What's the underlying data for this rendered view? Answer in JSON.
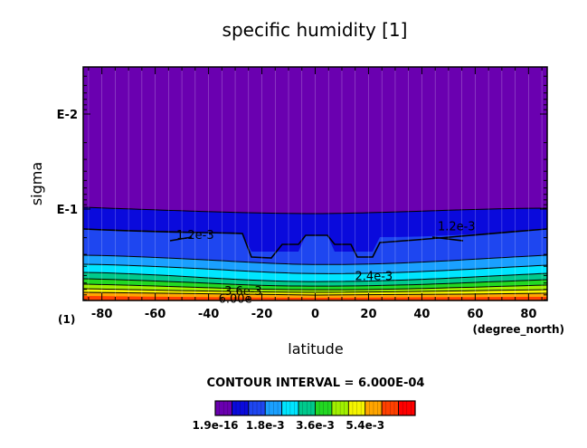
{
  "chart_data": {
    "type": "heatmap",
    "title": "specific humidity [1]",
    "xlabel": "latitude",
    "ylabel": "sigma",
    "x_units": "(degree_north)",
    "y_units": "(1)",
    "xlim": [
      -87,
      87
    ],
    "x_ticks": [
      -80,
      -60,
      -40,
      -20,
      0,
      20,
      40,
      60,
      80
    ],
    "x_tick_labels": [
      "-80",
      "-60",
      "-40",
      "-20",
      "0",
      "20",
      "40",
      "60",
      "80"
    ],
    "y_scale": "log",
    "y_reversed": true,
    "y_ticks": [
      0.01,
      0.1
    ],
    "y_tick_labels": [
      "E-2",
      "E-1"
    ],
    "contour_interval_label": "CONTOUR INTERVAL = 6.000E-04",
    "contour_interval": 0.0006,
    "band_colors": [
      "#6a00b0",
      "#0a0adc",
      "#1e46f0",
      "#1aa0ff",
      "#00e5ff",
      "#00c98c",
      "#22d822",
      "#a0f000",
      "#f5f500",
      "#ffa500",
      "#ff4000",
      "#ff0000"
    ],
    "contour_labels": [
      {
        "text": "1.2e-3",
        "lat": -45,
        "sigma": 0.185
      },
      {
        "text": "1.2e-3",
        "lat": 53,
        "sigma": 0.15
      },
      {
        "text": "2.4e-3",
        "lat": 22,
        "sigma": 0.5
      },
      {
        "text": "3.6e-3",
        "lat": -27,
        "sigma": 0.72
      },
      {
        "text": "6.00e",
        "lat": -30,
        "sigma": 0.87
      }
    ],
    "colorbar": {
      "tick_labels": [
        "1.9e-16",
        "1.8e-3",
        "3.6e-3",
        "5.4e-3"
      ],
      "min": 1.9e-16,
      "interval": 0.0006,
      "n_bands": 12
    },
    "grid": true,
    "legend": "colorbar-bottom"
  }
}
